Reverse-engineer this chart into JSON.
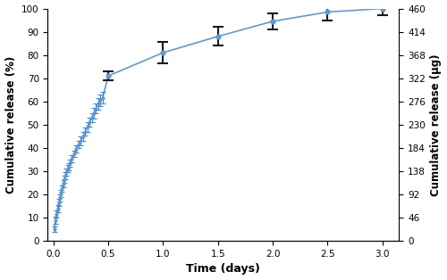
{
  "x_dense": [
    0.01,
    0.02,
    0.03,
    0.04,
    0.05,
    0.06,
    0.07,
    0.08,
    0.09,
    0.1,
    0.11,
    0.12,
    0.13,
    0.14,
    0.15,
    0.17,
    0.19,
    0.21,
    0.23,
    0.25,
    0.27,
    0.29,
    0.31,
    0.33,
    0.35,
    0.37,
    0.39,
    0.41,
    0.43,
    0.45,
    0.5,
    1.0,
    1.5,
    2.0,
    2.5,
    3.0
  ],
  "y_dense": [
    5.0,
    9.0,
    11.5,
    14.0,
    16.5,
    18.5,
    20.5,
    22.5,
    24.5,
    26.5,
    28.0,
    29.5,
    31.0,
    32.0,
    33.5,
    35.5,
    37.5,
    39.5,
    41.5,
    43.0,
    45.0,
    47.0,
    49.0,
    51.0,
    53.0,
    55.0,
    57.0,
    59.0,
    60.5,
    61.5,
    71.0,
    81.0,
    88.0,
    94.5,
    98.5,
    100.0
  ],
  "x_early": [
    0.01,
    0.02,
    0.03,
    0.04,
    0.05,
    0.06,
    0.07,
    0.08,
    0.09,
    0.1,
    0.11,
    0.12,
    0.13,
    0.14,
    0.15,
    0.17,
    0.19,
    0.21,
    0.23,
    0.25,
    0.27,
    0.29,
    0.31,
    0.33,
    0.35,
    0.37,
    0.39,
    0.41,
    0.43,
    0.45
  ],
  "y_early": [
    5.0,
    9.0,
    11.5,
    14.0,
    16.5,
    18.5,
    20.5,
    22.5,
    24.5,
    26.5,
    28.0,
    29.5,
    31.0,
    32.0,
    33.5,
    35.5,
    37.5,
    39.5,
    41.5,
    43.0,
    45.0,
    47.0,
    49.0,
    51.0,
    53.0,
    55.0,
    57.0,
    59.0,
    60.5,
    61.5
  ],
  "yerr_early": [
    1.2,
    1.5,
    1.5,
    1.5,
    1.5,
    1.5,
    1.5,
    1.5,
    1.5,
    1.5,
    1.5,
    1.5,
    1.5,
    1.5,
    1.5,
    1.5,
    1.5,
    1.5,
    1.5,
    1.8,
    1.8,
    1.8,
    2.0,
    2.0,
    2.0,
    2.2,
    2.2,
    2.5,
    2.5,
    2.5
  ],
  "x_sparse": [
    0.5,
    1.0,
    1.5,
    2.0,
    2.5,
    3.0
  ],
  "y_sparse": [
    71.0,
    81.0,
    88.0,
    94.5,
    98.5,
    100.0
  ],
  "yerr_sparse": [
    2.0,
    4.5,
    4.0,
    3.5,
    3.5,
    3.0
  ],
  "line_color": "#5b9bd5",
  "marker_color": "#5b9bd5",
  "errorbar_color_sparse": "#1a1a1a",
  "errorbar_color_early": "#4a86c8",
  "xlabel": "Time (days)",
  "ylabel_left": "Cumulative release (%)",
  "ylabel_right": "Cumulative release (μg)",
  "xlim": [
    -0.05,
    3.15
  ],
  "ylim_left": [
    0,
    100
  ],
  "ylim_right": [
    0,
    460
  ],
  "xticks": [
    0,
    0.5,
    1.0,
    1.5,
    2.0,
    2.5,
    3.0
  ],
  "yticks_left": [
    0,
    10,
    20,
    30,
    40,
    50,
    60,
    70,
    80,
    90,
    100
  ],
  "yticks_right": [
    0,
    46,
    92,
    138,
    184,
    230,
    276,
    322,
    368,
    414,
    460
  ],
  "figsize": [
    5.0,
    3.14
  ],
  "dpi": 100
}
